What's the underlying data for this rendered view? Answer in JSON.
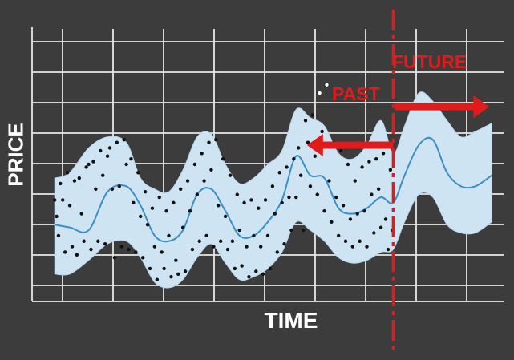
{
  "chart_data": {
    "type": "line",
    "title": "",
    "xlabel": "TIME",
    "ylabel": "PRICE",
    "xlim": [
      0,
      100
    ],
    "ylim": [
      0,
      10
    ],
    "grid": true,
    "forecast_start_x": 76.6,
    "annotations": [
      {
        "text": "PAST",
        "direction": "left",
        "from_x": 76.6,
        "to_x": 58.3,
        "y": 5.7
      },
      {
        "text": "FUTURE",
        "direction": "right",
        "from_x": 77.0,
        "to_x": 97.0,
        "y": 7.1
      }
    ],
    "forecast": {
      "x": [
        4.8,
        8,
        12,
        16,
        20,
        23,
        26,
        29,
        32,
        35,
        38,
        41,
        44,
        47,
        50,
        53,
        56,
        59,
        62,
        65,
        68,
        71,
        74,
        76.6,
        79,
        82,
        85,
        88,
        91,
        94,
        97.5
      ],
      "y": [
        2.8,
        2.7,
        2.6,
        4.0,
        4.2,
        3.5,
        2.4,
        2.2,
        2.6,
        3.9,
        4.1,
        3.3,
        2.4,
        2.4,
        2.9,
        3.7,
        5.3,
        4.6,
        4.5,
        3.4,
        3.2,
        3.4,
        3.8,
        3.6,
        4.6,
        5.7,
        5.9,
        4.7,
        4.2,
        4.2,
        4.6
      ],
      "upper": [
        4.5,
        4.7,
        5.6,
        6.0,
        5.8,
        4.5,
        4.1,
        4.0,
        4.8,
        6.0,
        6.1,
        5.0,
        4.3,
        4.5,
        5.0,
        5.5,
        7.0,
        6.7,
        6.4,
        5.4,
        5.2,
        5.7,
        6.6,
        5.4,
        6.4,
        7.6,
        7.3,
        6.6,
        6.0,
        6.2,
        6.5
      ],
      "lower": [
        1.0,
        1.0,
        1.5,
        2.1,
        2.2,
        1.6,
        0.7,
        0.5,
        0.8,
        1.6,
        2.1,
        1.4,
        0.8,
        0.9,
        1.2,
        1.8,
        2.9,
        2.6,
        2.2,
        1.6,
        1.4,
        1.5,
        1.8,
        1.9,
        2.9,
        3.9,
        3.8,
        2.8,
        2.5,
        2.5,
        2.9
      ]
    },
    "observed_points": [
      [
        4.8,
        3.7
      ],
      [
        5.2,
        3.1
      ],
      [
        5.6,
        2.4
      ],
      [
        6.0,
        4.3
      ],
      [
        6.5,
        3.7
      ],
      [
        7.0,
        1.8
      ],
      [
        7.5,
        4.7
      ],
      [
        8.0,
        3.5
      ],
      [
        8.5,
        2.0
      ],
      [
        9.0,
        4.4
      ],
      [
        9.5,
        1.7
      ],
      [
        10.0,
        4.5
      ],
      [
        10.5,
        3.2
      ],
      [
        11.0,
        2.2
      ],
      [
        11.5,
        4.9
      ],
      [
        12.0,
        5.0
      ],
      [
        12.5,
        1.9
      ],
      [
        13.0,
        5.1
      ],
      [
        13.5,
        4.1
      ],
      [
        14.0,
        2.2
      ],
      [
        14.5,
        5.5
      ],
      [
        15.0,
        4.6
      ],
      [
        15.5,
        2.1
      ],
      [
        16.0,
        5.3
      ],
      [
        16.5,
        5.6
      ],
      [
        17.0,
        4.1
      ],
      [
        17.5,
        1.6
      ],
      [
        18.0,
        5.8
      ],
      [
        18.5,
        4.2
      ],
      [
        19.0,
        2.0
      ],
      [
        19.5,
        5.9
      ],
      [
        20.0,
        5.0
      ],
      [
        20.5,
        1.9
      ],
      [
        21.0,
        5.2
      ],
      [
        21.5,
        3.6
      ],
      [
        22.0,
        1.8
      ],
      [
        22.5,
        4.7
      ],
      [
        23.0,
        3.1
      ],
      [
        23.5,
        1.6
      ],
      [
        24.0,
        4.0
      ],
      [
        24.5,
        2.8
      ],
      [
        25.0,
        1.2
      ],
      [
        25.5,
        3.4
      ],
      [
        26.0,
        2.0
      ],
      [
        26.5,
        0.8
      ],
      [
        27.0,
        3.8
      ],
      [
        27.5,
        1.8
      ],
      [
        28.0,
        1.2
      ],
      [
        28.5,
        3.3
      ],
      [
        29.0,
        2.4
      ],
      [
        29.5,
        0.9
      ],
      [
        30.0,
        3.6
      ],
      [
        30.5,
        1.5
      ],
      [
        31.0,
        1.0
      ],
      [
        31.5,
        4.1
      ],
      [
        32.0,
        2.7
      ],
      [
        32.5,
        1.1
      ],
      [
        33.0,
        4.4
      ],
      [
        33.5,
        3.3
      ],
      [
        34.0,
        1.9
      ],
      [
        34.5,
        5.0
      ],
      [
        35.0,
        3.9
      ],
      [
        35.5,
        2.2
      ],
      [
        36.0,
        5.4
      ],
      [
        36.5,
        4.4
      ],
      [
        37.0,
        2.4
      ],
      [
        37.5,
        5.8
      ],
      [
        38.0,
        4.8
      ],
      [
        38.5,
        2.0
      ],
      [
        39.0,
        5.9
      ],
      [
        39.5,
        3.5
      ],
      [
        40.0,
        2.2
      ],
      [
        40.5,
        5.2
      ],
      [
        41.0,
        3.1
      ],
      [
        41.5,
        1.9
      ],
      [
        42.0,
        4.6
      ],
      [
        42.5,
        2.2
      ],
      [
        43.0,
        1.2
      ],
      [
        43.5,
        3.9
      ],
      [
        44.0,
        2.6
      ],
      [
        44.5,
        1.3
      ],
      [
        45.0,
        3.6
      ],
      [
        45.5,
        2.0
      ],
      [
        46.0,
        0.9
      ],
      [
        46.5,
        3.7
      ],
      [
        47.0,
        2.4
      ],
      [
        47.5,
        1.1
      ],
      [
        48.0,
        3.4
      ],
      [
        48.5,
        2.0
      ],
      [
        49.0,
        1.0
      ],
      [
        49.5,
        3.7
      ],
      [
        50.0,
        2.4
      ],
      [
        50.5,
        1.2
      ],
      [
        51.0,
        4.2
      ],
      [
        51.5,
        3.2
      ],
      [
        52.0,
        1.8
      ],
      [
        52.5,
        4.7
      ],
      [
        53.0,
        3.6
      ],
      [
        53.5,
        2.1
      ],
      [
        54.0,
        4.9
      ],
      [
        54.5,
        3.8
      ],
      [
        55.0,
        2.6
      ],
      [
        55.5,
        5.2
      ],
      [
        56.0,
        3.8
      ],
      [
        56.5,
        5.6
      ],
      [
        57.0,
        4.6
      ],
      [
        57.5,
        2.6
      ],
      [
        58.0,
        6.6
      ],
      [
        58.5,
        5.8
      ],
      [
        59.0,
        4.2
      ],
      [
        59.5,
        6.8
      ],
      [
        60.0,
        5.3
      ],
      [
        60.5,
        3.9
      ],
      [
        61.0,
        7.6
      ],
      [
        61.5,
        6.2
      ],
      [
        62.0,
        3.3
      ],
      [
        62.5,
        7.9
      ],
      [
        63.0,
        4.4
      ],
      [
        63.5,
        2.9
      ],
      [
        64.0,
        5.8
      ],
      [
        64.5,
        3.8
      ],
      [
        65.0,
        2.4
      ],
      [
        65.5,
        5.5
      ],
      [
        66.0,
        3.5
      ],
      [
        66.5,
        2.2
      ],
      [
        67.0,
        5.0
      ],
      [
        67.5,
        3.0
      ],
      [
        68.0,
        2.0
      ],
      [
        68.5,
        4.4
      ],
      [
        69.0,
        3.2
      ],
      [
        69.5,
        2.2
      ],
      [
        70.0,
        4.9
      ],
      [
        70.5,
        3.3
      ],
      [
        71.0,
        2.0
      ],
      [
        71.5,
        5.1
      ],
      [
        72.0,
        3.9
      ],
      [
        72.5,
        2.5
      ],
      [
        73.0,
        5.2
      ],
      [
        73.5,
        4.1
      ],
      [
        74.0,
        2.7
      ],
      [
        74.5,
        5.4
      ],
      [
        75.0,
        3.0
      ],
      [
        75.5,
        1.9
      ],
      [
        76.0,
        4.8
      ],
      [
        76.4,
        2.6
      ]
    ]
  }
}
